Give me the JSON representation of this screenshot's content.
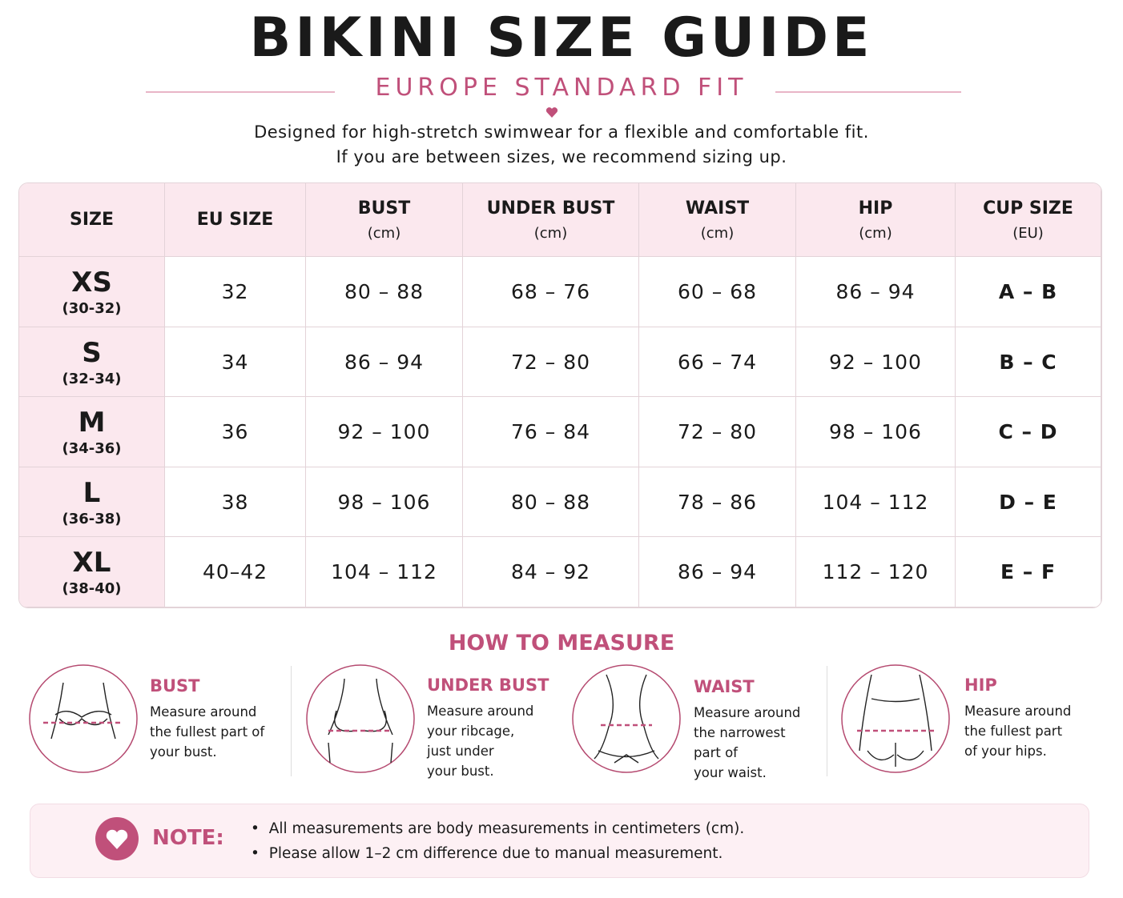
{
  "header": {
    "title": "BIKINI SIZE GUIDE",
    "subtitle": "EUROPE STANDARD FIT",
    "description": [
      "Designed for high-stretch swimwear for a flexible and comfortable fit.",
      "If you are between sizes, we recommend sizing up."
    ]
  },
  "table": {
    "columns": [
      {
        "label": "SIZE"
      },
      {
        "label": "EU SIZE"
      },
      {
        "label": "BUST",
        "unit": "(cm)"
      },
      {
        "label": "UNDER BUST",
        "unit": "(cm)"
      },
      {
        "label": "WAIST",
        "unit": "(cm)"
      },
      {
        "label": "HIP",
        "unit": "(cm)"
      },
      {
        "label": "CUP SIZE",
        "unit": "(EU)"
      }
    ],
    "rows": [
      {
        "size": "XS",
        "range": "(30-32)",
        "cells": [
          "32",
          "80 – 88",
          "68 – 76",
          "60 – 68",
          "86 – 94",
          "A – B"
        ]
      },
      {
        "size": "S",
        "range": "(32-34)",
        "cells": [
          "34",
          "86 – 94",
          "72 – 80",
          "66 – 74",
          "92 – 100",
          "B – C"
        ]
      },
      {
        "size": "M",
        "range": "(34-36)",
        "cells": [
          "36",
          "92 – 100",
          "76 – 84",
          "72 – 80",
          "98 – 106",
          "C – D"
        ]
      },
      {
        "size": "L",
        "range": "(36-38)",
        "cells": [
          "38",
          "98 – 106",
          "80 – 88",
          "78 – 86",
          "104 – 112",
          "D – E"
        ]
      },
      {
        "size": "XL",
        "range": "(38-40)",
        "cells": [
          "40–42",
          "104 – 112",
          "84 – 92",
          "86 – 94",
          "112 – 120",
          "E – F"
        ]
      }
    ]
  },
  "measure": {
    "title": "HOW TO MEASURE",
    "items": [
      {
        "title": "BUST",
        "lines": [
          "Measure around",
          "the fullest part of",
          "your bust."
        ]
      },
      {
        "title": "UNDER BUST",
        "lines": [
          "Measure around",
          "your ribcage,",
          "just under",
          "your bust."
        ]
      },
      {
        "title": "WAIST",
        "lines": [
          "Measure around",
          "the narrowest",
          "part of",
          "your waist."
        ]
      },
      {
        "title": "HIP",
        "lines": [
          "Measure around",
          "the fullest part",
          "of your hips."
        ]
      }
    ]
  },
  "note": {
    "label": "NOTE:",
    "items": [
      "All measurements are body measurements in centimeters (cm).",
      "Please allow 1–2 cm difference due to manual measurement."
    ]
  }
}
